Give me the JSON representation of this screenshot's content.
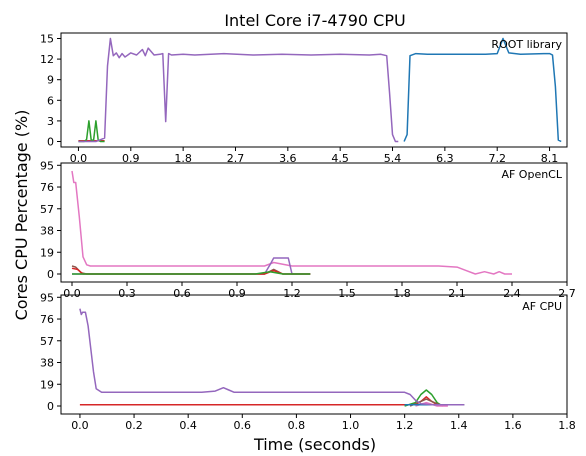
{
  "figure": {
    "title": "Intel Core i7-4790 CPU",
    "ylabel": "Cores CPU Percentage (%)",
    "xlabel": "Time (seconds)"
  },
  "chart_data": [
    {
      "type": "line",
      "label": "ROOT library",
      "xlim": [
        -0.3,
        8.4
      ],
      "ylim": [
        -0.8,
        15.8
      ],
      "xticks": [
        0.0,
        0.9,
        1.8,
        2.7,
        3.6,
        4.5,
        5.4,
        6.3,
        7.2,
        8.1
      ],
      "xtick_labels": [
        "0.0",
        "0.9",
        "1.8",
        "2.7",
        "3.6",
        "4.5",
        "5.4",
        "6.3",
        "7.2",
        "8.1"
      ],
      "yticks": [
        0,
        3,
        6,
        9,
        12,
        15
      ],
      "ytick_labels": [
        "0",
        "3",
        "6",
        "9",
        "12",
        "15"
      ],
      "series": [
        {
          "color": "#d62728",
          "x": [
            0.0,
            0.05,
            0.1,
            0.15,
            0.2,
            0.25,
            0.3,
            0.35,
            0.4,
            0.45
          ],
          "y": [
            0.1,
            0.1,
            0.1,
            0.1,
            0.1,
            0.1,
            0.1,
            0.1,
            0.1,
            0.1
          ]
        },
        {
          "color": "#2ca02c",
          "x": [
            0.0,
            0.1,
            0.14,
            0.18,
            0.22,
            0.26,
            0.3,
            0.34,
            0.38,
            0.45
          ],
          "y": [
            0.0,
            0.0,
            0.3,
            3.0,
            0.2,
            0.2,
            3.0,
            0.2,
            0.0,
            0.0
          ]
        },
        {
          "color": "#9467bd",
          "x": [
            0.0,
            0.3,
            0.45,
            0.5,
            0.55,
            0.6,
            0.65,
            0.7,
            0.75,
            0.8,
            0.9,
            1.0,
            1.1,
            1.15,
            1.2,
            1.3,
            1.4,
            1.45,
            1.5,
            1.55,
            1.6,
            1.8,
            2.0,
            2.5,
            3.0,
            3.5,
            4.0,
            4.5,
            5.0,
            5.2,
            5.3,
            5.35,
            5.4,
            5.45,
            5.5
          ],
          "y": [
            0.0,
            0.0,
            0.5,
            11.0,
            15.0,
            12.5,
            12.9,
            12.2,
            12.8,
            12.3,
            12.9,
            12.6,
            13.4,
            12.5,
            13.6,
            12.6,
            12.7,
            12.8,
            2.9,
            12.8,
            12.6,
            12.7,
            12.6,
            12.8,
            12.6,
            12.7,
            12.6,
            12.7,
            12.6,
            12.7,
            12.5,
            7.0,
            1.0,
            0.0,
            0.0
          ]
        },
        {
          "color": "#1f77b4",
          "x": [
            5.6,
            5.65,
            5.7,
            5.8,
            6.0,
            6.5,
            7.0,
            7.2,
            7.3,
            7.4,
            7.6,
            8.0,
            8.1,
            8.15,
            8.2,
            8.25,
            8.3
          ],
          "y": [
            0.0,
            1.0,
            12.5,
            12.8,
            12.7,
            12.7,
            12.7,
            12.8,
            15.0,
            12.9,
            12.7,
            12.8,
            12.8,
            12.6,
            8.0,
            0.2,
            0.0
          ]
        }
      ]
    },
    {
      "type": "line",
      "label": "AF OpenCL",
      "xlim": [
        -0.06,
        2.7
      ],
      "ylim": [
        -7,
        97
      ],
      "xticks": [
        0.0,
        0.3,
        0.6,
        0.9,
        1.2,
        1.5,
        1.8,
        2.1,
        2.4,
        2.7
      ],
      "xtick_labels": [
        "0.0",
        "0.3",
        "0.6",
        "0.9",
        "1.2",
        "1.5",
        "1.8",
        "2.1",
        "2.4",
        "2.7"
      ],
      "yticks": [
        0,
        19,
        38,
        57,
        76,
        95
      ],
      "ytick_labels": [
        "0",
        "19",
        "38",
        "57",
        "76",
        "95"
      ],
      "series": [
        {
          "color": "#e377c2",
          "x": [
            0.0,
            0.01,
            0.02,
            0.04,
            0.06,
            0.08,
            0.1,
            0.15,
            0.3,
            0.6,
            0.9,
            1.05,
            1.1,
            1.2,
            1.5,
            1.8,
            2.0,
            2.1,
            2.15,
            2.2,
            2.25,
            2.3,
            2.33,
            2.36,
            2.4
          ],
          "y": [
            90,
            80,
            80,
            50,
            15,
            8,
            7,
            7,
            7,
            7,
            7,
            7,
            10,
            7,
            7,
            7,
            7,
            6,
            3,
            0,
            2,
            0,
            2,
            0,
            0
          ]
        },
        {
          "color": "#9467bd",
          "x": [
            0.0,
            0.05,
            0.1,
            0.5,
            1.0,
            1.05,
            1.08,
            1.1,
            1.15,
            1.18,
            1.2,
            1.3
          ],
          "y": [
            0,
            0,
            0,
            0,
            0,
            0,
            8,
            14,
            14,
            14,
            0,
            0
          ]
        },
        {
          "color": "#8c564b",
          "x": [
            0.0,
            0.02,
            0.05,
            0.08,
            0.1,
            1.05,
            1.1,
            1.15,
            1.2,
            1.3
          ],
          "y": [
            7,
            6,
            1,
            0,
            0,
            0,
            4,
            0,
            0,
            0
          ]
        },
        {
          "color": "#d62728",
          "x": [
            0.0,
            0.03,
            0.06,
            0.1,
            1.05,
            1.1,
            1.15,
            1.2,
            1.3
          ],
          "y": [
            5,
            4,
            0,
            0,
            0,
            3,
            0,
            0,
            0
          ]
        },
        {
          "color": "#2ca02c",
          "x": [
            0.0,
            1.0,
            1.08,
            1.15,
            1.2,
            1.3
          ],
          "y": [
            0,
            0,
            2,
            0,
            0,
            0
          ]
        }
      ]
    },
    {
      "type": "line",
      "label": "AF CPU",
      "xlim": [
        -0.07,
        1.8
      ],
      "ylim": [
        -7,
        97
      ],
      "xticks": [
        0.0,
        0.2,
        0.4,
        0.6,
        0.8,
        1.0,
        1.2,
        1.4,
        1.6,
        1.8
      ],
      "xtick_labels": [
        "0.0",
        "0.2",
        "0.4",
        "0.6",
        "0.8",
        "1.0",
        "1.2",
        "1.4",
        "1.6",
        "1.8"
      ],
      "yticks": [
        0,
        19,
        38,
        57,
        76,
        95
      ],
      "ytick_labels": [
        "0",
        "19",
        "38",
        "57",
        "76",
        "95"
      ],
      "series": [
        {
          "color": "#d62728",
          "x": [
            0.0,
            1.24,
            1.26,
            1.28,
            1.3,
            1.32,
            1.34,
            1.42
          ],
          "y": [
            1,
            1,
            4,
            8,
            4,
            1,
            1,
            1
          ]
        },
        {
          "color": "#2ca02c",
          "x": [
            1.2,
            1.24,
            1.26,
            1.28,
            1.3,
            1.32,
            1.34
          ],
          "y": [
            0,
            3,
            10,
            14,
            10,
            3,
            0
          ]
        },
        {
          "color": "#8c564b",
          "x": [
            1.22,
            1.25,
            1.28,
            1.31,
            1.34
          ],
          "y": [
            0,
            3,
            6,
            3,
            0
          ]
        },
        {
          "color": "#e377c2",
          "x": [
            1.24,
            1.28,
            1.32,
            1.36
          ],
          "y": [
            0,
            3,
            0,
            0
          ]
        },
        {
          "color": "#1f77b4",
          "x": [
            1.2,
            1.25,
            1.3,
            1.35,
            1.4,
            1.42
          ],
          "y": [
            1,
            1,
            1,
            1,
            1,
            1
          ]
        },
        {
          "color": "#9467bd",
          "x": [
            0.0,
            0.005,
            0.01,
            0.02,
            0.03,
            0.04,
            0.05,
            0.06,
            0.08,
            0.1,
            0.2,
            0.3,
            0.4,
            0.45,
            0.5,
            0.53,
            0.55,
            0.57,
            0.6,
            0.65,
            0.7,
            0.8,
            0.9,
            1.0,
            1.1,
            1.15,
            1.2,
            1.22,
            1.24,
            1.26,
            1.3,
            1.35,
            1.42
          ],
          "y": [
            85,
            80,
            82,
            82,
            70,
            50,
            30,
            15,
            12,
            12,
            12,
            12,
            12,
            12,
            13,
            16,
            14,
            12,
            12,
            12,
            12,
            12,
            12,
            12,
            12,
            12,
            12,
            10,
            5,
            2,
            1,
            1,
            1
          ]
        }
      ]
    }
  ]
}
